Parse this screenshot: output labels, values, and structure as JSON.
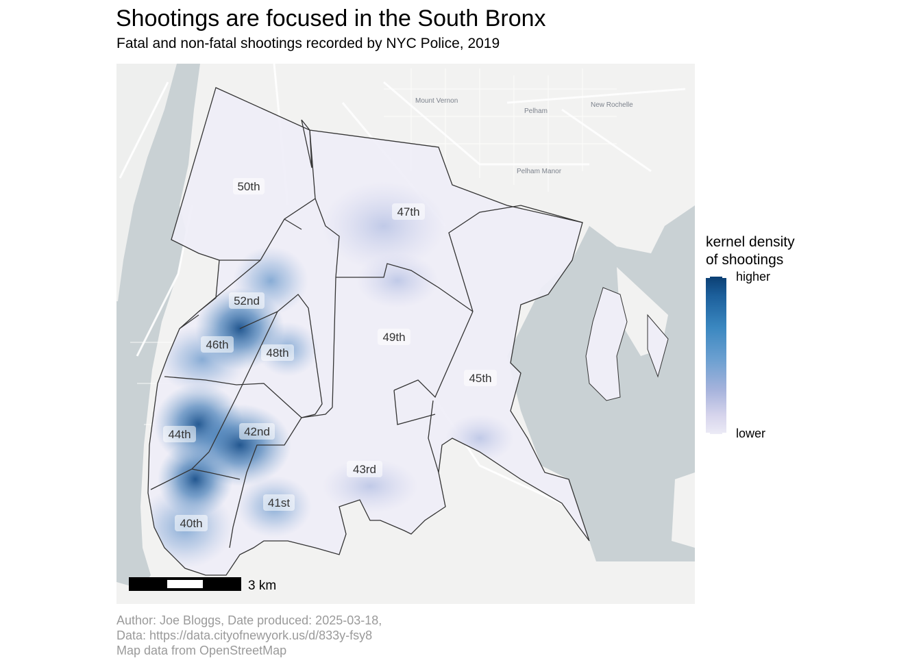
{
  "title": "Shootings are focused in the South Bronx",
  "subtitle": "Fatal and non-fatal shootings recorded by NYC Police, 2019",
  "legend": {
    "title_line1": "kernel density",
    "title_line2": "of shootings",
    "higher": "higher",
    "lower": "lower",
    "colors": [
      "#0b3f73",
      "#3a87c0",
      "#a6b3dc",
      "#ecebf6"
    ]
  },
  "precincts": [
    "50th",
    "47th",
    "52nd",
    "46th",
    "48th",
    "49th",
    "45th",
    "44th",
    "42nd",
    "43rd",
    "41st",
    "40th"
  ],
  "basemap_places": [
    "Mount Vernon",
    "Pelham",
    "New Rochelle",
    "Pelham Manor"
  ],
  "scalebar": {
    "label": "3 km"
  },
  "caption": {
    "line1": "Author: Joe Bloggs, Date produced: 2025-03-18,",
    "line2": "Data: https://data.cityofnewyork.us/d/833y-fsy8",
    "line3": "Map data from OpenStreetMap"
  },
  "colors": {
    "water": "#c9d1d4",
    "land": "#f2f2f1",
    "precinct_fill": "#efeef7",
    "boundary": "#333333"
  }
}
